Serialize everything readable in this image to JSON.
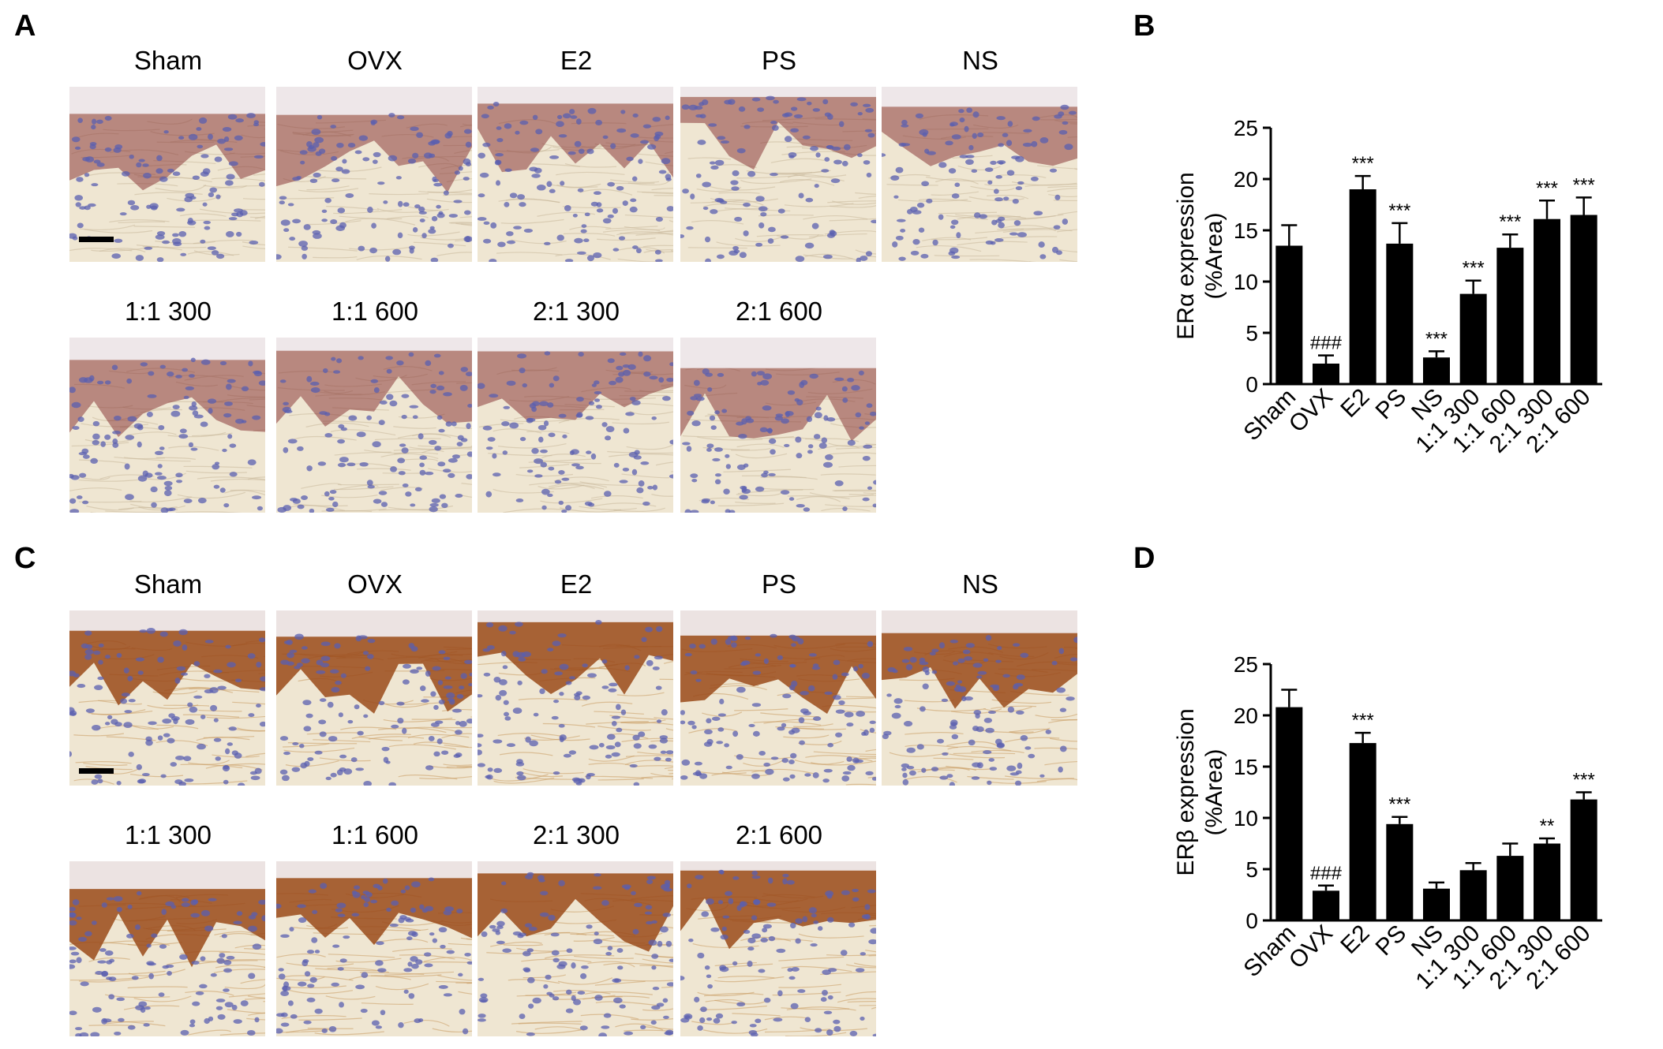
{
  "panels": {
    "A": "A",
    "B": "B",
    "C": "C",
    "D": "D"
  },
  "image_groups": {
    "row1": [
      "Sham",
      "OVX",
      "E2",
      "PS",
      "NS"
    ],
    "row2": [
      "1:1 300",
      "1:1 600",
      "2:1 300",
      "2:1 600"
    ]
  },
  "colors": {
    "hematoxylin": "#5a5fb0",
    "dab_a": "#8a3a3a",
    "dab_c": "#9a4a1a",
    "stroma": "#efe6d2",
    "bar": "#000000"
  },
  "chart_data": [
    {
      "type": "bar",
      "panel": "B",
      "categories": [
        "Sham",
        "OVX",
        "E2",
        "PS",
        "NS",
        "1:1 300",
        "1:1 600",
        "2:1 300",
        "2:1 600"
      ],
      "values": [
        13.5,
        2.0,
        19.0,
        13.7,
        2.6,
        8.8,
        13.3,
        16.1,
        16.5
      ],
      "errors": [
        2.0,
        0.8,
        1.3,
        2.0,
        0.6,
        1.3,
        1.3,
        1.8,
        1.7
      ],
      "annotations": [
        "",
        "###",
        "***",
        "***",
        "***",
        "***",
        "***",
        "***",
        "***"
      ],
      "ylabel_line1": "ERα expression",
      "ylabel_line2": "(%Area)",
      "ylim": [
        0,
        25
      ],
      "yticks": [
        "0",
        "5",
        "10",
        "15",
        "20",
        "25"
      ]
    },
    {
      "type": "bar",
      "panel": "D",
      "categories": [
        "Sham",
        "OVX",
        "E2",
        "PS",
        "NS",
        "1:1 300",
        "1:1 600",
        "2:1 300",
        "2:1 600"
      ],
      "values": [
        20.8,
        2.9,
        17.3,
        9.4,
        3.1,
        4.9,
        6.3,
        7.5,
        11.8
      ],
      "errors": [
        1.7,
        0.5,
        1.0,
        0.7,
        0.6,
        0.7,
        1.2,
        0.5,
        0.7
      ],
      "annotations": [
        "",
        "###",
        "***",
        "***",
        "",
        "",
        "",
        "**",
        "***"
      ],
      "ylabel_line1": "ERβ expression",
      "ylabel_line2": "(%Area)",
      "ylim": [
        0,
        25
      ],
      "yticks": [
        "0",
        "5",
        "10",
        "15",
        "20",
        "25"
      ]
    }
  ]
}
